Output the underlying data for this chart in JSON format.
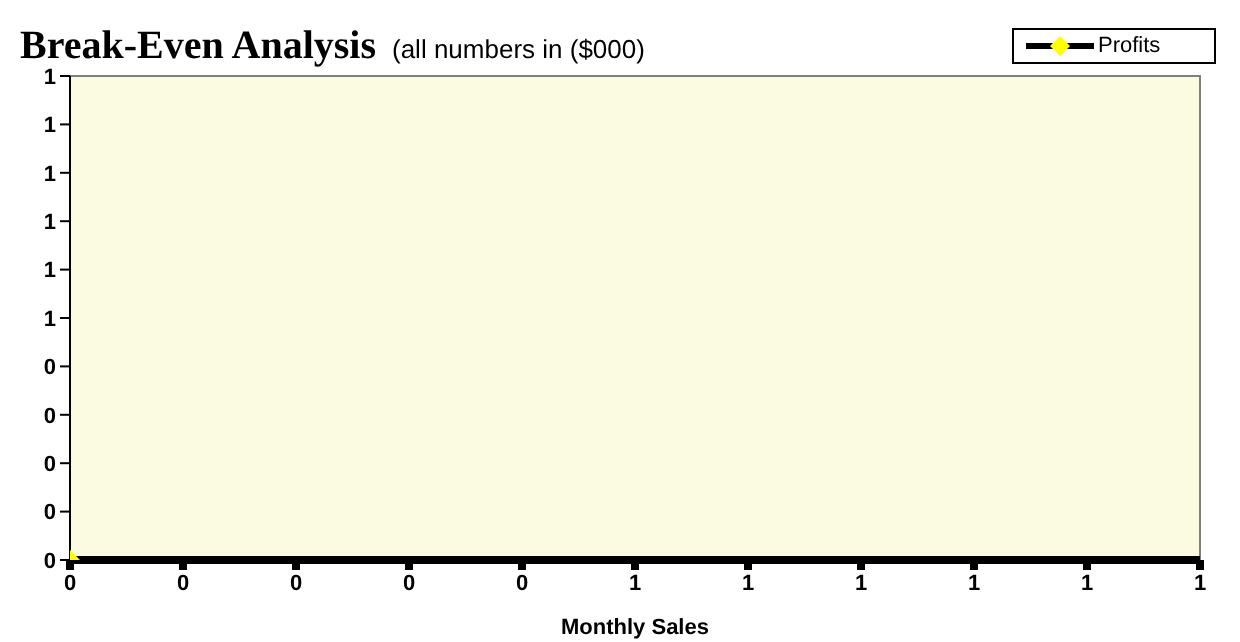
{
  "chart_data": {
    "type": "line",
    "title": "Break-Even Analysis",
    "subtitle": "(all numbers in ($000)",
    "xlabel": "Monthly Sales",
    "x": [
      0
    ],
    "series": [
      {
        "name": "Profits",
        "color": "#ffff00",
        "values": [
          0
        ]
      }
    ],
    "xlim": [
      0,
      1
    ],
    "xticks": [
      {
        "value": 0,
        "label": "0"
      },
      {
        "value": 0.1,
        "label": "0"
      },
      {
        "value": 0.2,
        "label": "0"
      },
      {
        "value": 0.3,
        "label": "0"
      },
      {
        "value": 0.4,
        "label": "0"
      },
      {
        "value": 0.5,
        "label": "1"
      },
      {
        "value": 0.6,
        "label": "1"
      },
      {
        "value": 0.7,
        "label": "1"
      },
      {
        "value": 0.8,
        "label": "1"
      },
      {
        "value": 0.9,
        "label": "1"
      },
      {
        "value": 1,
        "label": "1"
      }
    ],
    "ylim": [
      0,
      1
    ],
    "yticks": [
      {
        "value": 0,
        "label": "0"
      },
      {
        "value": 0.1,
        "label": "0"
      },
      {
        "value": 0.2,
        "label": "0"
      },
      {
        "value": 0.3,
        "label": "0"
      },
      {
        "value": 0.4,
        "label": "0"
      },
      {
        "value": 0.5,
        "label": "1"
      },
      {
        "value": 0.6,
        "label": "1"
      },
      {
        "value": 0.7,
        "label": "1"
      },
      {
        "value": 0.8,
        "label": "1"
      },
      {
        "value": 0.9,
        "label": "1"
      },
      {
        "value": 1,
        "label": "1"
      }
    ],
    "legend": "top right",
    "marker": "diamond"
  }
}
